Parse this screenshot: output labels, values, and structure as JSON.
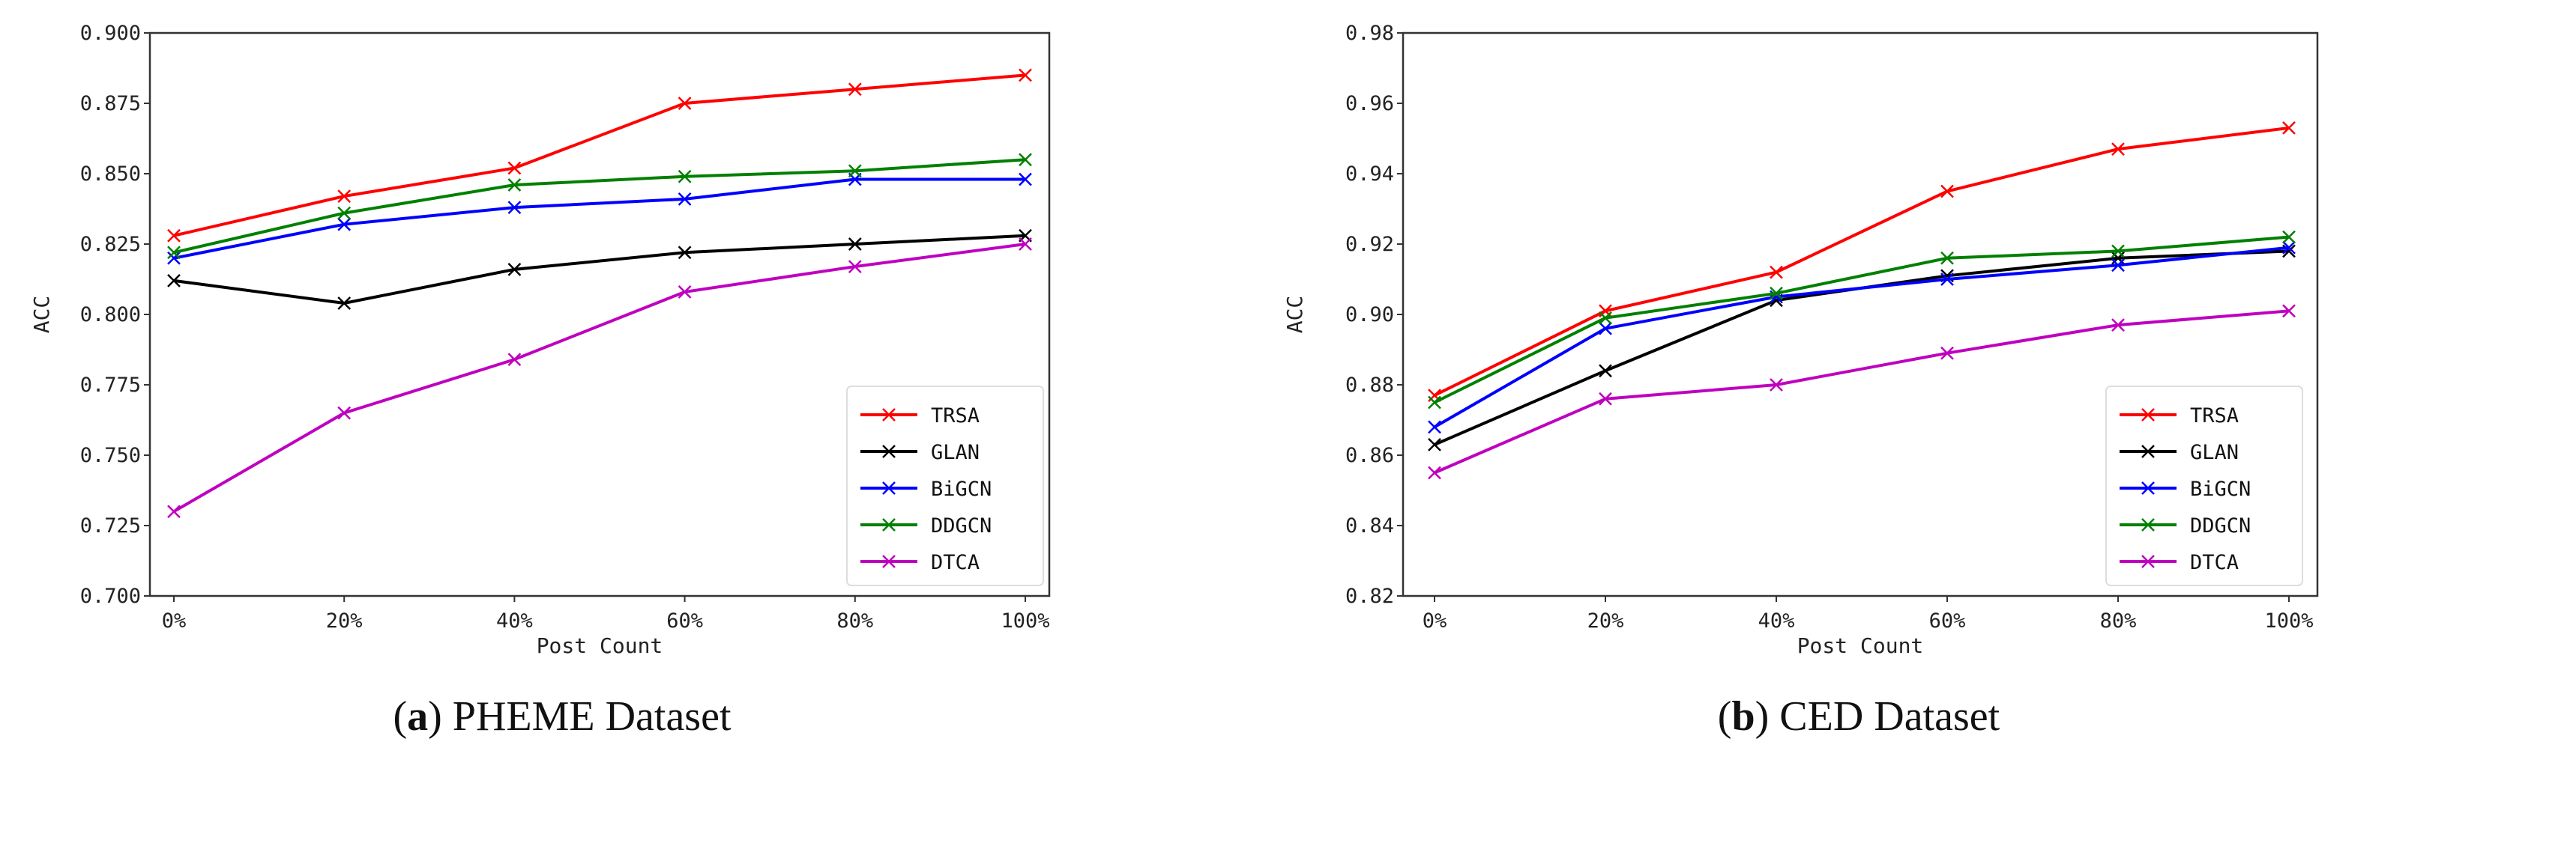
{
  "chart_data": [
    {
      "type": "line",
      "caption_label": "a",
      "caption_text": "PHEME Dataset",
      "xlabel": "Post Count",
      "ylabel": "ACC",
      "categories": [
        "0%",
        "20%",
        "40%",
        "60%",
        "80%",
        "100%"
      ],
      "ylim": [
        0.7,
        0.9
      ],
      "yticks": [
        "0.700",
        "0.725",
        "0.750",
        "0.775",
        "0.800",
        "0.825",
        "0.850",
        "0.875",
        "0.900"
      ],
      "grid": false,
      "legend_position": "lower-right",
      "marker": "x",
      "series": [
        {
          "name": "TRSA",
          "color": "#ff0000",
          "values": [
            0.828,
            0.842,
            0.852,
            0.875,
            0.88,
            0.885
          ]
        },
        {
          "name": "GLAN",
          "color": "#000000",
          "values": [
            0.812,
            0.804,
            0.816,
            0.822,
            0.825,
            0.828
          ]
        },
        {
          "name": "BiGCN",
          "color": "#0000ff",
          "values": [
            0.82,
            0.832,
            0.838,
            0.841,
            0.848,
            0.848
          ]
        },
        {
          "name": "DDGCN",
          "color": "#008000",
          "values": [
            0.822,
            0.836,
            0.846,
            0.849,
            0.851,
            0.855
          ]
        },
        {
          "name": "DTCA",
          "color": "#bf00bf",
          "values": [
            0.73,
            0.765,
            0.784,
            0.808,
            0.817,
            0.825
          ]
        }
      ]
    },
    {
      "type": "line",
      "caption_label": "b",
      "caption_text": "CED Dataset",
      "xlabel": "Post Count",
      "ylabel": "ACC",
      "categories": [
        "0%",
        "20%",
        "40%",
        "60%",
        "80%",
        "100%"
      ],
      "ylim": [
        0.82,
        0.98
      ],
      "yticks": [
        "0.82",
        "0.84",
        "0.86",
        "0.88",
        "0.90",
        "0.92",
        "0.94",
        "0.96",
        "0.98"
      ],
      "grid": false,
      "legend_position": "lower-right",
      "marker": "x",
      "series": [
        {
          "name": "TRSA",
          "color": "#ff0000",
          "values": [
            0.877,
            0.901,
            0.912,
            0.935,
            0.947,
            0.953
          ]
        },
        {
          "name": "GLAN",
          "color": "#000000",
          "values": [
            0.863,
            0.884,
            0.904,
            0.911,
            0.916,
            0.918
          ]
        },
        {
          "name": "BiGCN",
          "color": "#0000ff",
          "values": [
            0.868,
            0.896,
            0.905,
            0.91,
            0.914,
            0.919
          ]
        },
        {
          "name": "DDGCN",
          "color": "#008000",
          "values": [
            0.875,
            0.899,
            0.906,
            0.916,
            0.918,
            0.922
          ]
        },
        {
          "name": "DTCA",
          "color": "#bf00bf",
          "values": [
            0.855,
            0.876,
            0.88,
            0.889,
            0.897,
            0.901
          ]
        }
      ]
    }
  ]
}
